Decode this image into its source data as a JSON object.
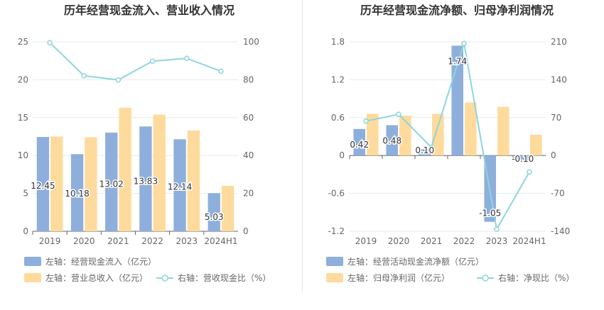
{
  "chart_data": [
    {
      "type": "bar",
      "title": "历年经营现金流入、营业收入情况",
      "categories": [
        "2019",
        "2020",
        "2021",
        "2022",
        "2023",
        "2024H1"
      ],
      "left_axis": {
        "ylim": [
          0,
          25
        ],
        "ticks": [
          "0",
          "5",
          "10",
          "15",
          "20",
          "25"
        ]
      },
      "right_axis": {
        "ylim": [
          0,
          100
        ],
        "ticks": [
          "0",
          "20",
          "40",
          "60",
          "80",
          "100"
        ]
      },
      "series": [
        {
          "name": "左轴：经营现金流入（亿元）",
          "kind": "bar",
          "axis": "left",
          "color": "#8eafdc",
          "values": [
            12.45,
            10.18,
            13.02,
            13.83,
            12.14,
            5.03
          ],
          "labels": [
            "12.45",
            "10.18",
            "13.02",
            "13.83",
            "12.14",
            "5.03"
          ]
        },
        {
          "name": "左轴：营业总收入（亿元）",
          "kind": "bar",
          "axis": "left",
          "color": "#fedb9c",
          "values": [
            12.5,
            12.4,
            16.3,
            15.4,
            13.3,
            6.0
          ]
        },
        {
          "name": "右轴：营收现金比（%）",
          "kind": "line",
          "axis": "right",
          "color": "#8ed6dc",
          "values": [
            99.6,
            82.1,
            79.9,
            89.8,
            91.3,
            84.5
          ]
        }
      ],
      "grid": true,
      "legend_position": "bottom-left"
    },
    {
      "type": "bar",
      "title": "历年经营现金流净额、归母净利润情况",
      "categories": [
        "2019",
        "2020",
        "2021",
        "2022",
        "2023",
        "2024H1"
      ],
      "left_axis": {
        "ylim": [
          -1.2,
          1.8
        ],
        "ticks": [
          "-1.2",
          "-0.6",
          "0",
          "0.6",
          "1.2",
          "1.8"
        ]
      },
      "right_axis": {
        "ylim": [
          -140,
          210
        ],
        "ticks": [
          "-140",
          "-70",
          "0",
          "70",
          "140",
          "210"
        ]
      },
      "series": [
        {
          "name": "左轴：经营活动现金流净额（亿元）",
          "kind": "bar",
          "axis": "left",
          "color": "#8eafdc",
          "values": [
            0.42,
            0.48,
            0.1,
            1.74,
            -1.05,
            -0.1
          ],
          "labels": [
            "0.42",
            "0.48",
            "0.10",
            "1.74",
            "-1.05",
            "-0.10"
          ]
        },
        {
          "name": "左轴：归母净利润（亿元）",
          "kind": "bar",
          "axis": "left",
          "color": "#fedb9c",
          "values": [
            0.66,
            0.63,
            0.66,
            0.84,
            0.77,
            0.33
          ]
        },
        {
          "name": "右轴：净现比（%）",
          "kind": "line",
          "axis": "right",
          "color": "#8ed6dc",
          "values": [
            63.6,
            76.2,
            15.2,
            207.1,
            -136.4,
            -30.3
          ]
        }
      ],
      "grid": true,
      "legend_position": "bottom-left"
    }
  ]
}
